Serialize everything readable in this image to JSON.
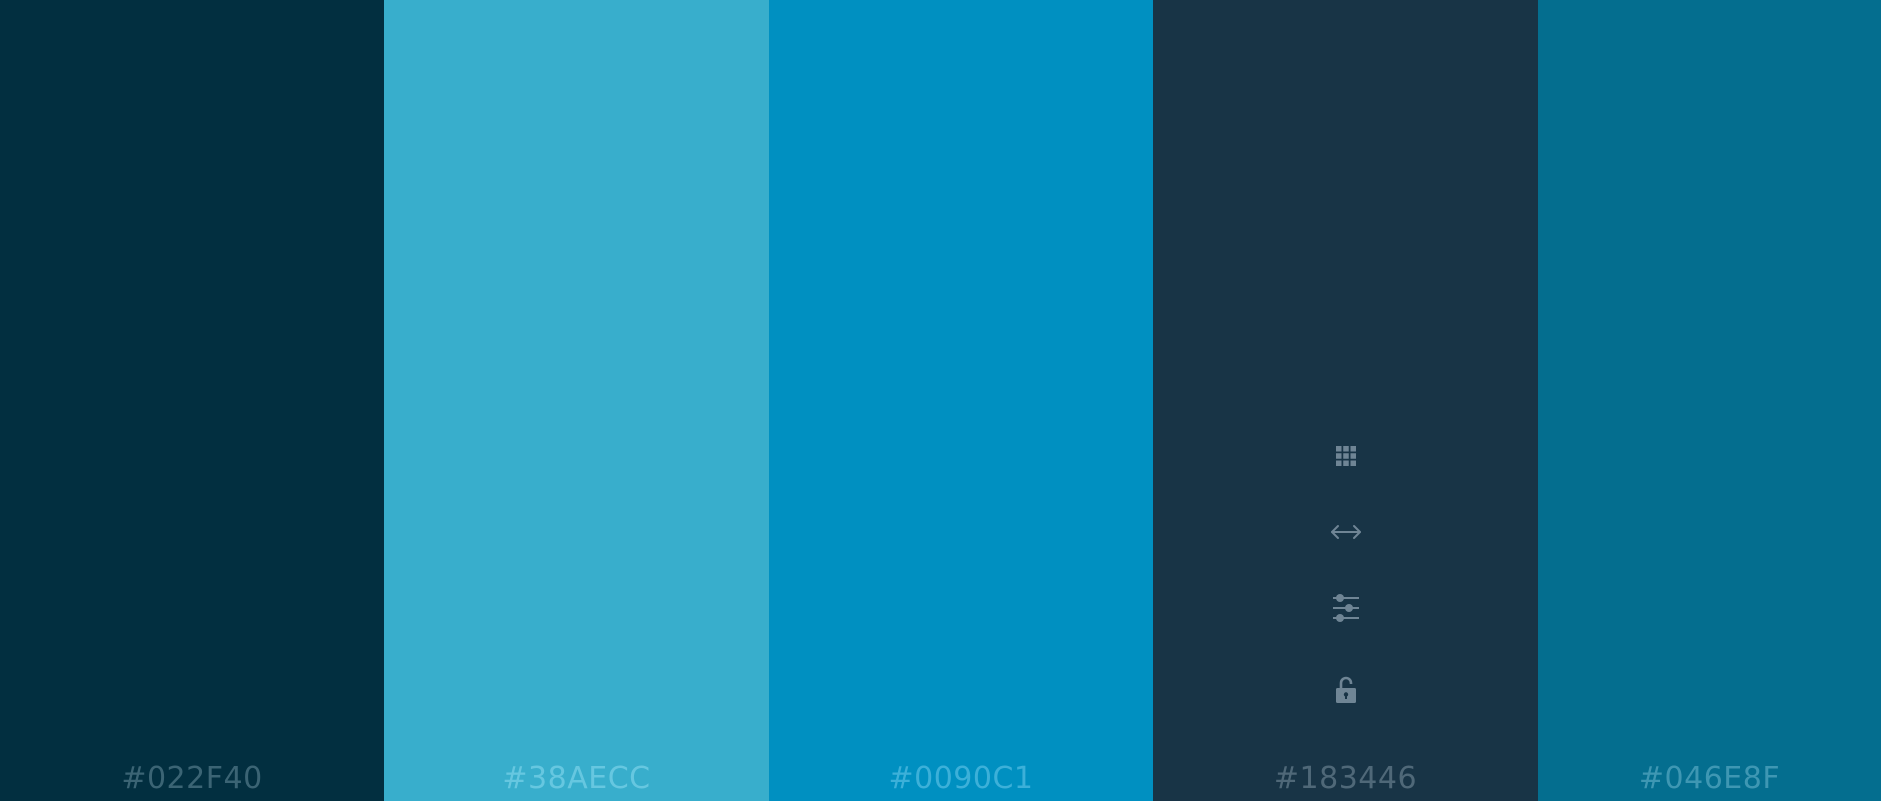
{
  "swatches": [
    {
      "hex": "#022F40",
      "label_color": "#3B6474"
    },
    {
      "hex": "#38AECC",
      "label_color": "#66C7E0"
    },
    {
      "hex": "#0090C1",
      "label_color": "#3CB0D9"
    },
    {
      "hex": "#183446",
      "label_color": "#4F6878"
    },
    {
      "hex": "#046E8F",
      "label_color": "#3E97B3"
    }
  ],
  "toolbar": {
    "icon_color": "#6F8595",
    "icons": [
      "grid-icon",
      "resize-arrows-icon",
      "sliders-icon",
      "lock-icon"
    ]
  }
}
